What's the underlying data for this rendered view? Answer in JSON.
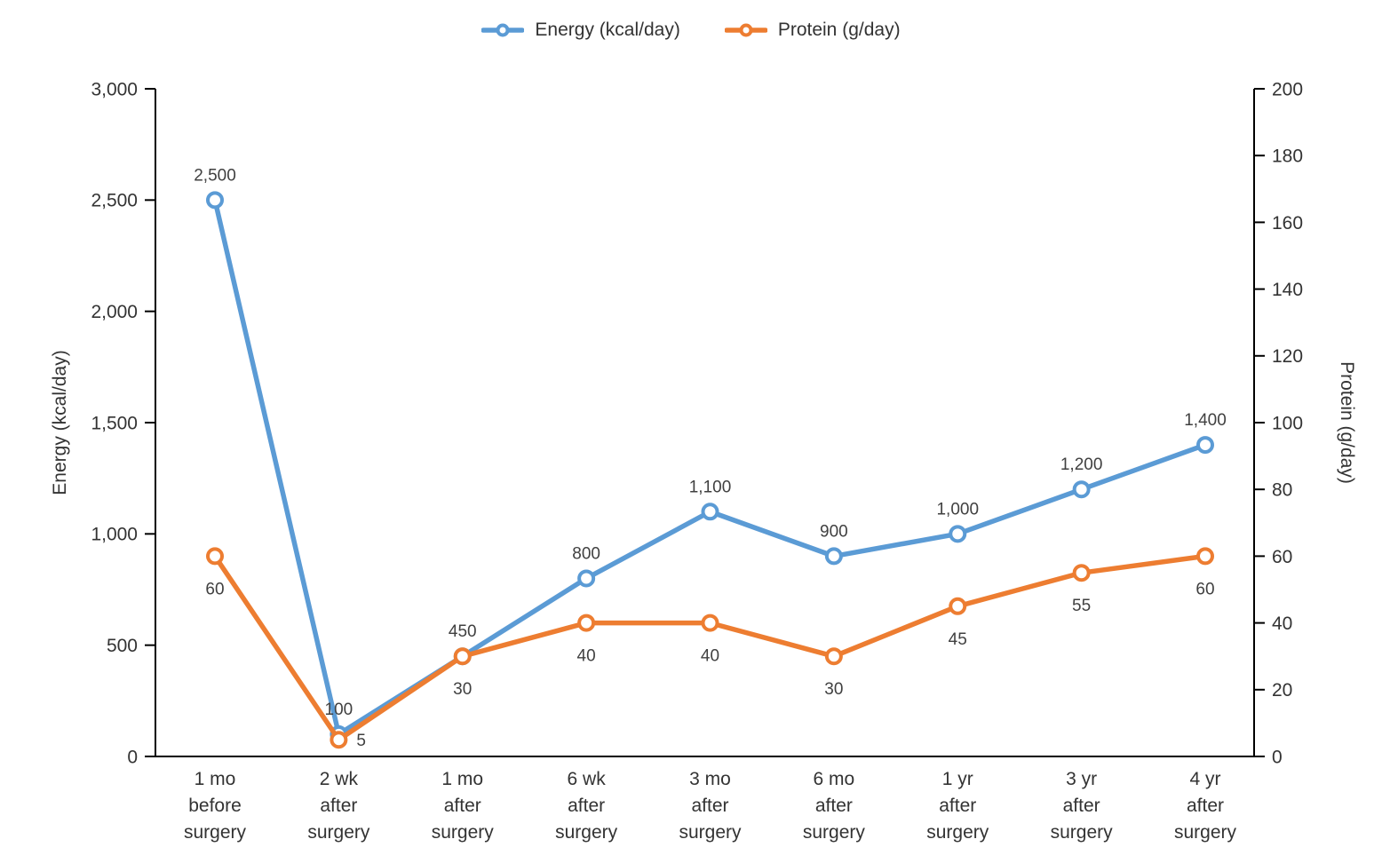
{
  "legend": {
    "items": [
      {
        "key": "energy",
        "label": "Energy (kcal/day)",
        "color": "#5B9BD5"
      },
      {
        "key": "protein",
        "label": "Protein (g/day)",
        "color": "#ED7D31"
      }
    ]
  },
  "chart_data": {
    "type": "line",
    "legend_position": "top",
    "grid": false,
    "categories": [
      [
        "1 mo",
        "before",
        "surgery"
      ],
      [
        "2 wk",
        "after",
        "surgery"
      ],
      [
        "1 mo",
        "after",
        "surgery"
      ],
      [
        "6 wk",
        "after",
        "surgery"
      ],
      [
        "3 mo",
        "after",
        "surgery"
      ],
      [
        "6 mo",
        "after",
        "surgery"
      ],
      [
        "1 yr",
        "after",
        "surgery"
      ],
      [
        "3 yr",
        "after",
        "surgery"
      ],
      [
        "4 yr",
        "after",
        "surgery"
      ]
    ],
    "series": [
      {
        "key": "energy",
        "name": "Energy (kcal/day)",
        "axis": "left",
        "color": "#5B9BD5",
        "values": [
          2500,
          100,
          450,
          800,
          1100,
          900,
          1000,
          1200,
          1400
        ],
        "labels": [
          "2,500",
          "100",
          "450",
          "800",
          "1,100",
          "900",
          "1,000",
          "1,200",
          "1,400"
        ],
        "label_position": "above",
        "label_overrides": {}
      },
      {
        "key": "protein",
        "name": "Protein (g/day)",
        "axis": "right",
        "color": "#ED7D31",
        "values": [
          60,
          5,
          30,
          40,
          40,
          30,
          45,
          55,
          60
        ],
        "labels": [
          "60",
          "5",
          "30",
          "40",
          "40",
          "30",
          "45",
          "55",
          "60"
        ],
        "label_position": "below",
        "label_overrides": {
          "1": "right"
        }
      }
    ],
    "axes": {
      "left": {
        "title": "Energy (kcal/day)",
        "min": 0,
        "max": 3000,
        "step": 500,
        "tick_labels": [
          "0",
          "500",
          "1,000",
          "1,500",
          "2,000",
          "2,500",
          "3,000"
        ]
      },
      "right": {
        "title": "Protein (g/day)",
        "min": 0,
        "max": 200,
        "step": 20,
        "tick_labels": [
          "0",
          "20",
          "40",
          "60",
          "80",
          "100",
          "120",
          "140",
          "160",
          "180",
          "200"
        ]
      }
    },
    "colors": {
      "axis_line": "#000000",
      "tick_text": "#333333",
      "data_label_text": "#404040"
    }
  }
}
